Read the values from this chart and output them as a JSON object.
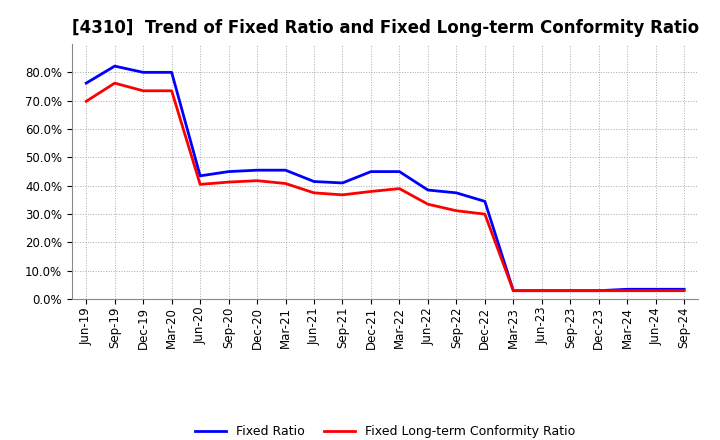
{
  "title": "[4310]  Trend of Fixed Ratio and Fixed Long-term Conformity Ratio",
  "x_labels": [
    "Jun-19",
    "Sep-19",
    "Dec-19",
    "Mar-20",
    "Jun-20",
    "Sep-20",
    "Dec-20",
    "Mar-21",
    "Jun-21",
    "Sep-21",
    "Dec-21",
    "Mar-22",
    "Jun-22",
    "Sep-22",
    "Dec-22",
    "Mar-23",
    "Jun-23",
    "Sep-23",
    "Dec-23",
    "Mar-24",
    "Jun-24",
    "Sep-24"
  ],
  "fixed_ratio": [
    0.762,
    0.822,
    0.8,
    0.8,
    0.435,
    0.45,
    0.455,
    0.455,
    0.415,
    0.41,
    0.45,
    0.45,
    0.385,
    0.375,
    0.345,
    0.03,
    0.03,
    0.03,
    0.03,
    0.035,
    0.035,
    0.035
  ],
  "fixed_lt_ratio": [
    0.698,
    0.762,
    0.735,
    0.735,
    0.405,
    0.413,
    0.418,
    0.408,
    0.375,
    0.368,
    0.38,
    0.39,
    0.335,
    0.312,
    0.3,
    0.03,
    0.03,
    0.03,
    0.03,
    0.03,
    0.03,
    0.03
  ],
  "fixed_ratio_color": "#0000ff",
  "fixed_lt_ratio_color": "#ff0000",
  "background_color": "#ffffff",
  "plot_bg_color": "#ffffff",
  "grid_color": "#aaaaaa",
  "ylim": [
    0.0,
    0.9
  ],
  "yticks": [
    0.0,
    0.1,
    0.2,
    0.3,
    0.4,
    0.5,
    0.6,
    0.7,
    0.8
  ],
  "legend_labels": [
    "Fixed Ratio",
    "Fixed Long-term Conformity Ratio"
  ],
  "line_width": 2.0,
  "title_fontsize": 12,
  "tick_fontsize": 8.5
}
